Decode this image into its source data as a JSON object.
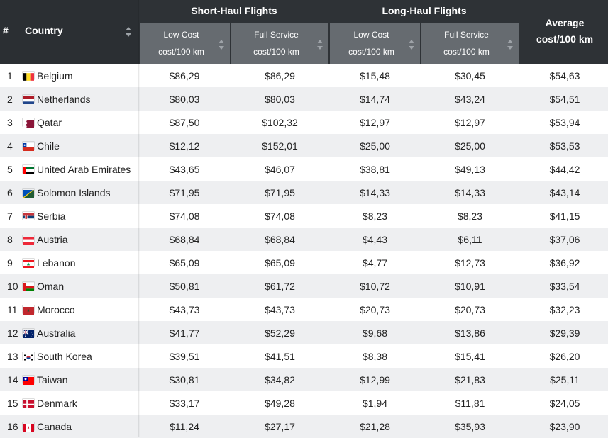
{
  "header": {
    "rank_label": "#",
    "country_label": "Country",
    "short_haul": "Short-Haul Flights",
    "long_haul": "Long-Haul Flights",
    "sub": [
      {
        "line1": "Low Cost",
        "line2": "cost/100 km"
      },
      {
        "line1": "Full Service",
        "line2": "cost/100 km"
      },
      {
        "line1": "Low Cost",
        "line2": "cost/100 km"
      },
      {
        "line1": "Full Service",
        "line2": "cost/100 km"
      }
    ],
    "average_line1": "Average",
    "average_line2": "cost/100 km"
  },
  "rows": [
    {
      "rank": "1",
      "country": "Belgium",
      "flag": "belgium-flag-icon",
      "sh_low": "$86,29",
      "sh_full": "$86,29",
      "lh_low": "$15,48",
      "lh_full": "$30,45",
      "avg": "$54,63"
    },
    {
      "rank": "2",
      "country": "Netherlands",
      "flag": "netherlands-flag-icon",
      "sh_low": "$80,03",
      "sh_full": "$80,03",
      "lh_low": "$14,74",
      "lh_full": "$43,24",
      "avg": "$54,51"
    },
    {
      "rank": "3",
      "country": "Qatar",
      "flag": "qatar-flag-icon",
      "sh_low": "$87,50",
      "sh_full": "$102,32",
      "lh_low": "$12,97",
      "lh_full": "$12,97",
      "avg": "$53,94"
    },
    {
      "rank": "4",
      "country": "Chile",
      "flag": "chile-flag-icon",
      "sh_low": "$12,12",
      "sh_full": "$152,01",
      "lh_low": "$25,00",
      "lh_full": "$25,00",
      "avg": "$53,53"
    },
    {
      "rank": "5",
      "country": "United Arab Emirates",
      "flag": "uae-flag-icon",
      "sh_low": "$43,65",
      "sh_full": "$46,07",
      "lh_low": "$38,81",
      "lh_full": "$49,13",
      "avg": "$44,42"
    },
    {
      "rank": "6",
      "country": "Solomon Islands",
      "flag": "solomon-islands-flag-icon",
      "sh_low": "$71,95",
      "sh_full": "$71,95",
      "lh_low": "$14,33",
      "lh_full": "$14,33",
      "avg": "$43,14"
    },
    {
      "rank": "7",
      "country": "Serbia",
      "flag": "serbia-flag-icon",
      "sh_low": "$74,08",
      "sh_full": "$74,08",
      "lh_low": "$8,23",
      "lh_full": "$8,23",
      "avg": "$41,15"
    },
    {
      "rank": "8",
      "country": "Austria",
      "flag": "austria-flag-icon",
      "sh_low": "$68,84",
      "sh_full": "$68,84",
      "lh_low": "$4,43",
      "lh_full": "$6,11",
      "avg": "$37,06"
    },
    {
      "rank": "9",
      "country": "Lebanon",
      "flag": "lebanon-flag-icon",
      "sh_low": "$65,09",
      "sh_full": "$65,09",
      "lh_low": "$4,77",
      "lh_full": "$12,73",
      "avg": "$36,92"
    },
    {
      "rank": "10",
      "country": "Oman",
      "flag": "oman-flag-icon",
      "sh_low": "$50,81",
      "sh_full": "$61,72",
      "lh_low": "$10,72",
      "lh_full": "$10,91",
      "avg": "$33,54"
    },
    {
      "rank": "11",
      "country": "Morocco",
      "flag": "morocco-flag-icon",
      "sh_low": "$43,73",
      "sh_full": "$43,73",
      "lh_low": "$20,73",
      "lh_full": "$20,73",
      "avg": "$32,23"
    },
    {
      "rank": "12",
      "country": "Australia",
      "flag": "australia-flag-icon",
      "sh_low": "$41,77",
      "sh_full": "$52,29",
      "lh_low": "$9,68",
      "lh_full": "$13,86",
      "avg": "$29,39"
    },
    {
      "rank": "13",
      "country": "South Korea",
      "flag": "south-korea-flag-icon",
      "sh_low": "$39,51",
      "sh_full": "$41,51",
      "lh_low": "$8,38",
      "lh_full": "$15,41",
      "avg": "$26,20"
    },
    {
      "rank": "14",
      "country": "Taiwan",
      "flag": "taiwan-flag-icon",
      "sh_low": "$30,81",
      "sh_full": "$34,82",
      "lh_low": "$12,99",
      "lh_full": "$21,83",
      "avg": "$25,11"
    },
    {
      "rank": "15",
      "country": "Denmark",
      "flag": "denmark-flag-icon",
      "sh_low": "$33,17",
      "sh_full": "$49,28",
      "lh_low": "$1,94",
      "lh_full": "$11,81",
      "avg": "$24,05"
    },
    {
      "rank": "16",
      "country": "Canada",
      "flag": "canada-flag-icon",
      "sh_low": "$11,24",
      "sh_full": "$27,17",
      "lh_low": "$21,28",
      "lh_full": "$35,93",
      "avg": "$23,90"
    }
  ],
  "colors": {
    "header_dark": "#2e3236",
    "header_sub": "#666b70",
    "row_stripe": "#eeeff1"
  }
}
